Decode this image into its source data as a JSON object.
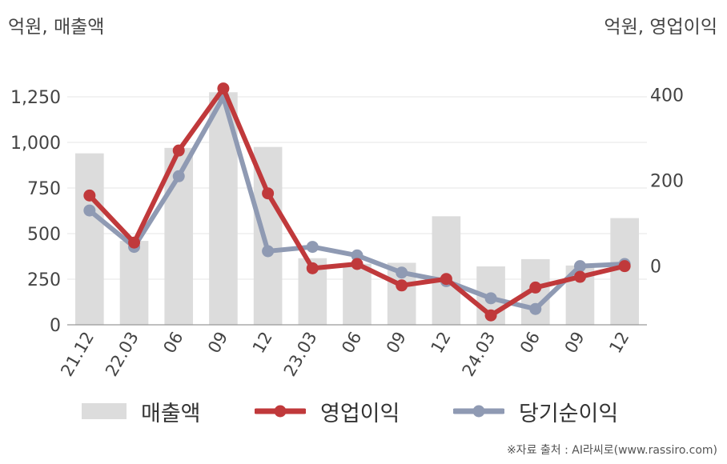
{
  "units": {
    "left": "억원, 매출액",
    "right": "억원, 영업이익"
  },
  "source": "※자료 출처 : AI라씨로(www.rassiro.com)",
  "colors": {
    "revenue": "#dcdcdc",
    "operating": "#c0393b",
    "net": "#8f9ab3"
  },
  "chart_data": {
    "type": "bar",
    "categories": [
      "21.12",
      "22.03",
      "06",
      "09",
      "12",
      "23.03",
      "06",
      "09",
      "12",
      "24.03",
      "06",
      "09",
      "12"
    ],
    "left_axis": {
      "ticks": [
        0,
        250,
        500,
        750,
        1000,
        1250
      ],
      "tick_labels": [
        "0",
        "250",
        "500",
        "750",
        "1,000",
        "1,250"
      ],
      "range": [
        0,
        1500
      ]
    },
    "right_axis": {
      "ticks": [
        0,
        200,
        400
      ],
      "tick_labels": [
        "0",
        "200",
        "400"
      ],
      "range": [
        -137,
        502
      ]
    },
    "series": [
      {
        "name": "매출액",
        "type": "bar",
        "axis": "left",
        "values": [
          940,
          460,
          970,
          1275,
          975,
          365,
          335,
          340,
          595,
          320,
          360,
          325,
          585
        ]
      },
      {
        "name": "영업이익",
        "type": "line",
        "axis": "right",
        "values": [
          165,
          55,
          270,
          415,
          170,
          -5,
          5,
          -45,
          -30,
          -115,
          -50,
          -25,
          0
        ]
      },
      {
        "name": "당기순이익",
        "type": "line",
        "axis": "right",
        "values": [
          130,
          45,
          210,
          395,
          35,
          45,
          25,
          -15,
          -35,
          -75,
          -100,
          0,
          5
        ]
      }
    ],
    "legend_position": "bottom",
    "grid": true
  }
}
